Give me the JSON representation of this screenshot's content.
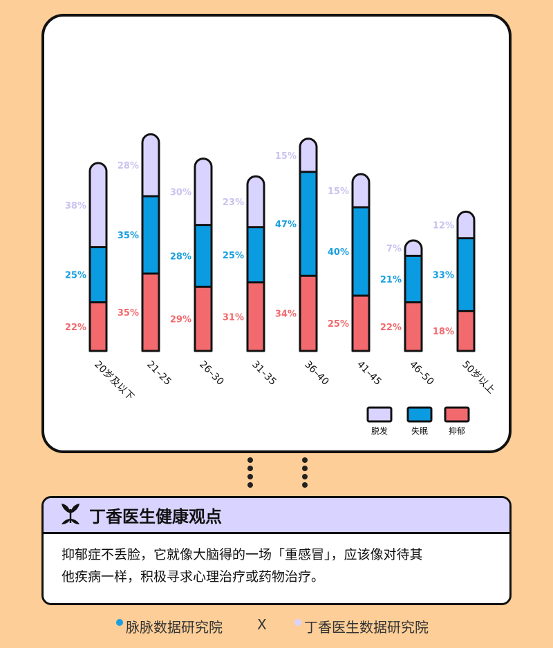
{
  "chart_data": {
    "type": "bar",
    "stacked": true,
    "categories": [
      "20岁及以下",
      "21–25",
      "26–30",
      "31–35",
      "36–40",
      "41–45",
      "46–50",
      "50岁以上"
    ],
    "series": [
      {
        "name": "抑郁",
        "color": "#F26A6E",
        "label_color": "#F26A6E",
        "values": [
          22,
          35,
          29,
          31,
          34,
          25,
          22,
          18
        ],
        "labels": [
          "22%",
          "35%",
          "29%",
          "31%",
          "34%",
          "25%",
          "22%",
          "18%"
        ]
      },
      {
        "name": "失眠",
        "color": "#0A9BE0",
        "label_color": "#1A9FE0",
        "values": [
          25,
          35,
          28,
          25,
          47,
          40,
          21,
          33
        ],
        "labels": [
          "25%",
          "35%",
          "28%",
          "25%",
          "47%",
          "40%",
          "21%",
          "33%"
        ]
      },
      {
        "name": "脱发",
        "color": "#D9D3FF",
        "label_color": "#C9C3F0",
        "values": [
          38,
          28,
          30,
          23,
          15,
          15,
          7,
          12
        ],
        "labels": [
          "38%",
          "28%",
          "30%",
          "23%",
          "15%",
          "15%",
          "7%",
          "12%"
        ]
      }
    ],
    "legend_order": [
      "脱发",
      "失眠",
      "抑郁"
    ],
    "legend_position": "bottom-right",
    "grid": false,
    "ylim": [
      0,
      100
    ]
  },
  "insight": {
    "title": "丁香医生健康观点",
    "icon": "leaf-icon",
    "lines": [
      "抑郁症不丢脸，它就像大脑得的一场「重感冒」，应该像对待其",
      "他疾病一样，积极寻求心理治疗或药物治疗。"
    ]
  },
  "footer": {
    "left": "脉脉数据研究院",
    "separator": "X",
    "right": "丁香医生数据研究院",
    "left_dot_color": "#1A9FE0",
    "right_dot_color": "#D9D3FF"
  }
}
